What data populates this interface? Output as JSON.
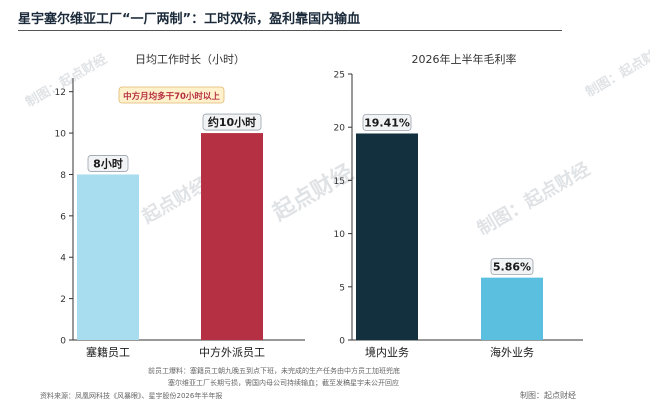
{
  "header": {
    "title": "星宇塞尔维亚工厂“一厂两制”：工时双标，盈利靠国内输血"
  },
  "watermarks": [
    "制图：起点财经",
    "起点财经",
    "制图：起点财经",
    "制图：起点财经",
    "制图：起点财经"
  ],
  "chart_data": [
    {
      "type": "bar",
      "title": "日均工作时长（小时）",
      "categories": [
        "塞籍员工",
        "中方外派员工"
      ],
      "values": [
        8,
        10
      ],
      "data_labels": [
        "8小时",
        "约10小时"
      ],
      "ylim": [
        0,
        13
      ],
      "yticks": [
        0,
        2,
        4,
        6,
        8,
        10,
        12
      ],
      "colors": [
        "#a8dcef",
        "#b53042"
      ],
      "annotation": "中方月均多干70小时以上",
      "grid": false
    },
    {
      "type": "bar",
      "title": "2026年上半年毛利率",
      "categories": [
        "境内业务",
        "海外业务"
      ],
      "values": [
        19.41,
        5.86
      ],
      "data_labels": [
        "19.41%",
        "5.86%"
      ],
      "ylim": [
        0,
        25
      ],
      "yticks": [
        0,
        5,
        10,
        15,
        20,
        25
      ],
      "colors": [
        "#12303d",
        "#5bbfe0"
      ],
      "grid": false
    }
  ],
  "footnotes": {
    "line1": "前员工爆料：塞籍员工朝九晚五到点下班，未完成的生产任务由中方员工加班兜底",
    "line2": "塞尔维亚工厂长期亏损，需国内母公司持续输血；截至发稿星宇未公开回应",
    "source": "资料来源：凤凰网科技《风暴眼》、星宇股份2026年半年报",
    "credit": "制图：起点财经"
  }
}
